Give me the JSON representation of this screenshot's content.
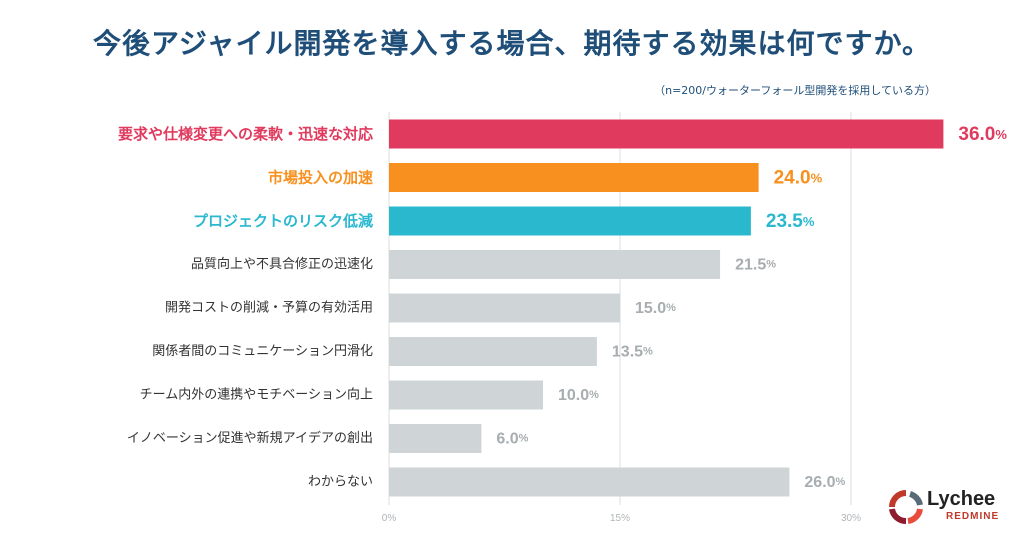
{
  "title": "今後アジャイル開発を導入する場合、期待する効果は何ですか。",
  "subtitle": "（n=200/ウォーターフォール型開発を採用している方）",
  "colors": {
    "highlight1": "#e03a5e",
    "highlight2": "#f7901e",
    "highlight3": "#2ab8cf",
    "default_bar": "#cfd4d6",
    "default_text": "#333333",
    "default_value": "#a7adb0",
    "axis_tick": "#b0b5b8",
    "grid": "#dddddd"
  },
  "chart_data": {
    "type": "bar",
    "orientation": "horizontal",
    "categories": [
      "要求や仕様変更への柔軟・迅速な対応",
      "市場投入の加速",
      "プロジェクトのリスク低減",
      "品質向上や不具合修正の迅速化",
      "開発コストの削減・予算の有効活用",
      "関係者間のコミュニケーション円滑化",
      "チーム内外の連携やモチベーション向上",
      "イノベーション促進や新規アイデアの創出",
      "わからない"
    ],
    "values": [
      36.0,
      24.0,
      23.5,
      21.5,
      15.0,
      13.5,
      10.0,
      6.0,
      26.0
    ],
    "value_labels": [
      "36.0",
      "24.0",
      "23.5",
      "21.5",
      "15.0",
      "13.5",
      "10.0",
      "6.0",
      "26.0"
    ],
    "value_unit": "%",
    "highlight": [
      "highlight1",
      "highlight2",
      "highlight3",
      null,
      null,
      null,
      null,
      null,
      null
    ],
    "x_ticks": [
      "0%",
      "15%",
      "30%"
    ],
    "x_tick_values": [
      0,
      15,
      30
    ],
    "xlim": [
      0,
      36
    ],
    "grid": true
  },
  "logo": {
    "name": "Lychee",
    "sub": "REDMINE"
  }
}
